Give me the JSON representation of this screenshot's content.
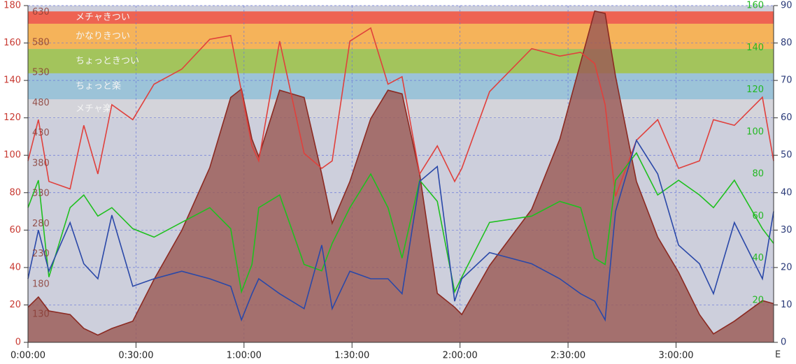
{
  "chart_data": {
    "type": "line",
    "corner_label": "E",
    "x": [
      0,
      2.9,
      5.8,
      11.7,
      15.5,
      19.4,
      23.3,
      29.1,
      35,
      42.7,
      50.5,
      56.3,
      59.3,
      62.2,
      64.1,
      69.9,
      76.7,
      81.6,
      84.5,
      89.4,
      95.2,
      100,
      103.9,
      108.8,
      113.7,
      118.5,
      120.5,
      128.2,
      139.9,
      147.7,
      153.5,
      157.4,
      160.3,
      163.2,
      169,
      174.9,
      180.7,
      186.5,
      190.4,
      196.2,
      204,
      207.1
    ],
    "xlim": [
      0,
      207.1
    ],
    "xticks": [
      {
        "value": 0,
        "label": "0:00:00"
      },
      {
        "value": 30,
        "label": "0:30:00"
      },
      {
        "value": 60,
        "label": "1:00:00"
      },
      {
        "value": 90,
        "label": "1:30:00"
      },
      {
        "value": 120,
        "label": "2:00:00"
      },
      {
        "value": 150,
        "label": "2:30:00"
      },
      {
        "value": 180,
        "label": "3:00:00"
      }
    ],
    "ylim": [
      0,
      180
    ],
    "yticks": [
      0,
      20,
      40,
      60,
      80,
      100,
      120,
      140,
      160,
      180
    ],
    "y2lim": [
      0,
      90
    ],
    "y2ticks": [
      0,
      10,
      20,
      30,
      40,
      50,
      60,
      70,
      80,
      90
    ],
    "y3lim": [
      0,
      160
    ],
    "y3ticks": [
      20,
      40,
      60,
      80,
      100,
      120,
      140,
      160
    ],
    "y4lim": [
      84,
      641
    ],
    "y4ticks": [
      130,
      180,
      230,
      280,
      330,
      380,
      430,
      480,
      530,
      580,
      630
    ],
    "grid": true,
    "zones": [
      {
        "label": "メチャきつい",
        "from": 170.3,
        "to": 176.9,
        "color": "#ee6352"
      },
      {
        "label": "かなりきつい",
        "from": 156.8,
        "to": 170.3,
        "color": "#f5b35a"
      },
      {
        "label": "ちょっときつい",
        "from": 143.8,
        "to": 156.8,
        "color": "#a3c45c"
      },
      {
        "label": "ちょっと楽",
        "from": 129.9,
        "to": 143.8,
        "color": "#9cc3d8"
      },
      {
        "label": "メチャ楽",
        "from": 119.5,
        "to": 129.9,
        "color": "#d4d4da"
      }
    ],
    "series": [
      {
        "axis": "y4",
        "color": "#8b2a22",
        "fill": "#9b5a55",
        "values": [
          142,
          159,
          136,
          130,
          107,
          96,
          107,
          119,
          188,
          269,
          373,
          489,
          503,
          420,
          391,
          501,
          489,
          362,
          281,
          350,
          454,
          501,
          495,
          362,
          165,
          142,
          130,
          211,
          304,
          420,
          547,
          632,
          628,
          524,
          350,
          258,
          200,
          130,
          98,
          119,
          153,
          148
        ]
      },
      {
        "axis": "y",
        "color": "#e0403c",
        "values": [
          97,
          119,
          86,
          82,
          116,
          90,
          127,
          119,
          138,
          146,
          162,
          164,
          134,
          105,
          97,
          161,
          101,
          93,
          97,
          161,
          168,
          138,
          142,
          90,
          105,
          86,
          93,
          134,
          157,
          153,
          155,
          149,
          127,
          78,
          108,
          119,
          93,
          97,
          119,
          116,
          131,
          97
        ]
      },
      {
        "axis": "y3",
        "color": "#1fc01f",
        "values": [
          64,
          77,
          31,
          64,
          70,
          60,
          64,
          54,
          50,
          57,
          64,
          54,
          24,
          37,
          64,
          70,
          37,
          34,
          47,
          64,
          80,
          64,
          40,
          77,
          67,
          24,
          31,
          57,
          60,
          67,
          64,
          40,
          37,
          77,
          90,
          70,
          77,
          70,
          64,
          77,
          54,
          47
        ]
      },
      {
        "axis": "y2",
        "color": "#2a48a8",
        "values": [
          17,
          30,
          19,
          32,
          21,
          17,
          34,
          15,
          17,
          19,
          17,
          15,
          6,
          13,
          17,
          13,
          9,
          26,
          9,
          19,
          17,
          17,
          13,
          43,
          47,
          11,
          17,
          24,
          21,
          17,
          13,
          11,
          6,
          35,
          54,
          45,
          26,
          21,
          13,
          32,
          17,
          35
        ]
      }
    ]
  }
}
